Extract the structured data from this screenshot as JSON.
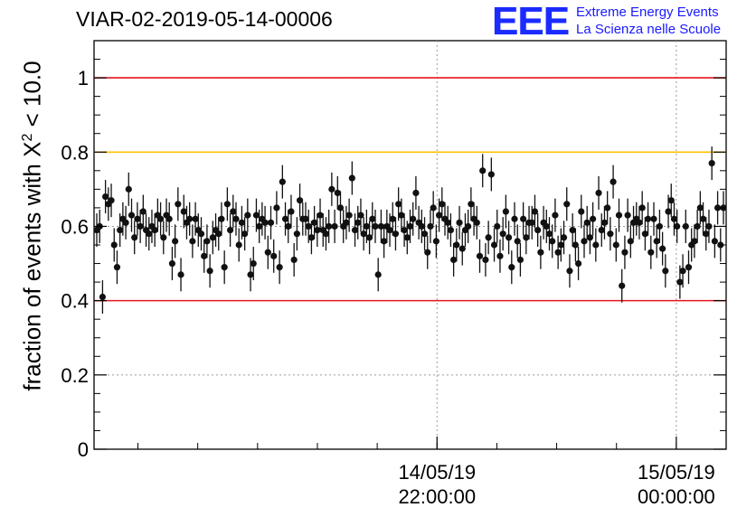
{
  "title": "VIAR-02-2019-05-14-00006",
  "logo": {
    "mark": "EEE",
    "line1": "Extreme Energy Events",
    "line2": "La Scienza nelle Scuole"
  },
  "colors": {
    "limit_red": "#e8141e",
    "limit_orange": "#ffc000",
    "points": "#111111",
    "grid": "#9a9a9a",
    "logo_blue": "#1a2bff"
  },
  "chart_data": {
    "type": "scatter",
    "title": "VIAR-02-2019-05-14-00006",
    "xlabel": "",
    "ylabel_parts": {
      "prefix": "fraction of events with ",
      "symbol": "X",
      "power": "2",
      "suffix": " < 10.0"
    },
    "ylim": [
      0,
      1.1
    ],
    "xlim": [
      "2019-05-14 19:08",
      "2019-05-15 00:25"
    ],
    "yticks": [
      "0",
      "0.2",
      "0.4",
      "0.6",
      "0.8",
      "1"
    ],
    "xticks": [
      {
        "x": "2019-05-14 22:00",
        "date": "14/05/19",
        "time": "22:00:00"
      },
      {
        "x": "2019-05-15 00:00",
        "date": "15/05/19",
        "time": "00:00:00"
      }
    ],
    "grid": {
      "x": true,
      "y": true,
      "style": "dotted"
    },
    "reference_lines": [
      {
        "y": 1.0,
        "color": "#e8141e"
      },
      {
        "y": 0.8,
        "color": "#ffc000"
      },
      {
        "y": 0.4,
        "color": "#e8141e"
      }
    ],
    "series": [
      {
        "y": [
          0.59,
          0.6,
          0.41,
          0.68,
          0.66,
          0.67,
          0.55,
          0.49,
          0.59,
          0.62,
          0.61,
          0.7,
          0.63,
          0.57,
          0.62,
          0.6,
          0.64,
          0.59,
          0.58,
          0.6,
          0.59,
          0.63,
          0.62,
          0.57,
          0.63,
          0.62,
          0.5,
          0.56,
          0.66,
          0.47,
          0.64,
          0.61,
          0.62,
          0.56,
          0.62,
          0.59,
          0.58,
          0.52,
          0.56,
          0.48,
          0.57,
          0.59,
          0.58,
          0.62,
          0.49,
          0.66,
          0.59,
          0.64,
          0.62,
          0.55,
          0.61,
          0.58,
          0.63,
          0.47,
          0.5,
          0.63,
          0.6,
          0.62,
          0.61,
          0.53,
          0.61,
          0.52,
          0.65,
          0.49,
          0.72,
          0.62,
          0.6,
          0.64,
          0.51,
          0.58,
          0.67,
          0.62,
          0.62,
          0.6,
          0.57,
          0.61,
          0.59,
          0.63,
          0.59,
          0.58,
          0.6,
          0.7,
          0.6,
          0.69,
          0.65,
          0.6,
          0.61,
          0.63,
          0.73,
          0.59,
          0.61,
          0.63,
          0.58,
          0.6,
          0.57,
          0.62,
          0.6,
          0.47,
          0.6,
          0.56,
          0.6,
          0.59,
          0.62,
          0.58,
          0.66,
          0.63,
          0.59,
          0.57,
          0.6,
          0.62,
          0.69,
          0.61,
          0.6,
          0.58,
          0.53,
          0.6,
          0.65,
          0.56,
          0.63,
          0.66,
          0.62,
          0.61,
          0.59,
          0.51,
          0.55,
          0.61,
          0.54,
          0.59,
          0.6,
          0.66,
          0.62,
          0.61,
          0.52,
          0.75,
          0.51,
          0.57,
          0.74,
          0.55,
          0.6,
          0.52,
          0.58,
          0.64,
          0.57,
          0.49,
          0.62,
          0.56,
          0.51,
          0.62,
          0.57,
          0.61,
          0.61,
          0.64,
          0.59,
          0.53,
          0.61,
          0.6,
          0.58,
          0.56,
          0.63,
          0.53,
          0.55,
          0.57,
          0.66,
          0.48,
          0.59,
          0.55,
          0.5,
          0.64,
          0.56,
          0.61,
          0.57,
          0.62,
          0.55,
          0.69,
          0.59,
          0.61,
          0.65,
          0.58,
          0.72,
          0.55,
          0.63,
          0.44,
          0.53,
          0.63,
          0.56,
          0.61,
          0.62,
          0.61,
          0.65,
          0.58,
          0.62,
          0.53,
          0.62,
          0.56,
          0.6,
          0.54,
          0.48,
          0.64,
          0.67,
          0.62,
          0.6,
          0.45,
          0.48,
          0.6,
          0.49,
          0.55,
          0.56,
          0.6,
          0.65,
          0.62,
          0.58,
          0.6,
          0.77,
          0.56,
          0.65,
          0.55,
          0.65
        ]
      }
    ]
  }
}
